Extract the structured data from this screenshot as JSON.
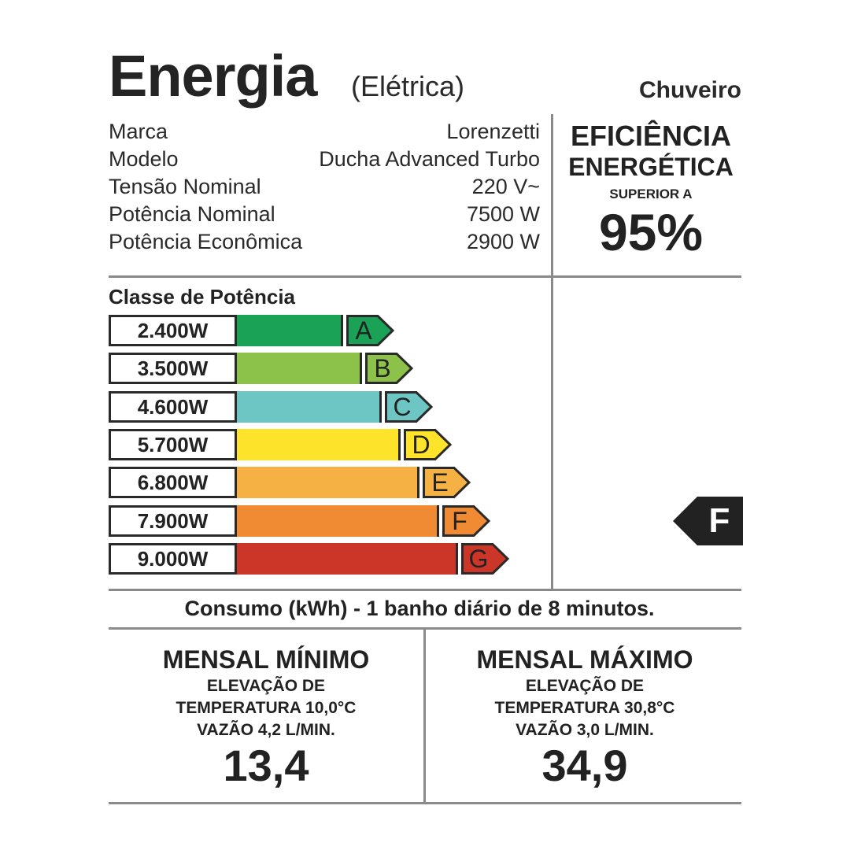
{
  "header": {
    "title": "Energia",
    "subtitle": "(Elétrica)",
    "product": "Chuveiro"
  },
  "specs": [
    {
      "label": "Marca",
      "value": "Lorenzetti"
    },
    {
      "label": "Modelo",
      "value": "Ducha Advanced Turbo"
    },
    {
      "label": "Tensão Nominal",
      "value": "220 V~"
    },
    {
      "label": "Potência Nominal",
      "value": "7500 W"
    },
    {
      "label": "Potência Econômica",
      "value": "2900 W"
    }
  ],
  "efficiency": {
    "line1": "EFICIÊNCIA",
    "line2": "ENERGÉTICA",
    "line3": "SUPERIOR A",
    "value": "95%"
  },
  "power_class": {
    "title": "Classe de Potência",
    "classes": [
      {
        "power": "2.400W",
        "letter": "A",
        "color": "#1aa356"
      },
      {
        "power": "3.500W",
        "letter": "B",
        "color": "#8cc24a"
      },
      {
        "power": "4.600W",
        "letter": "C",
        "color": "#6dc6c3"
      },
      {
        "power": "5.700W",
        "letter": "D",
        "color": "#fde32a"
      },
      {
        "power": "6.800W",
        "letter": "E",
        "color": "#f6b144"
      },
      {
        "power": "7.900W",
        "letter": "F",
        "color": "#f08a33"
      },
      {
        "power": "9.000W",
        "letter": "G",
        "color": "#cc3628"
      }
    ],
    "rating": "F",
    "rating_color": "#222222"
  },
  "consumption": {
    "note": "Consumo (kWh) - 1 banho diário de 8 minutos.",
    "min": {
      "title": "MENSAL MÍNIMO",
      "line1": "ELEVAÇÃO DE",
      "line2": "TEMPERATURA 10,0°C",
      "line3": "VAZÃO 4,2 L/MIN.",
      "value": "13,4"
    },
    "max": {
      "title": "MENSAL MÁXIMO",
      "line1": "ELEVAÇÃO DE",
      "line2": "TEMPERATURA 30,8°C",
      "line3": "VAZÃO 3,0 L/MIN.",
      "value": "34,9"
    }
  }
}
